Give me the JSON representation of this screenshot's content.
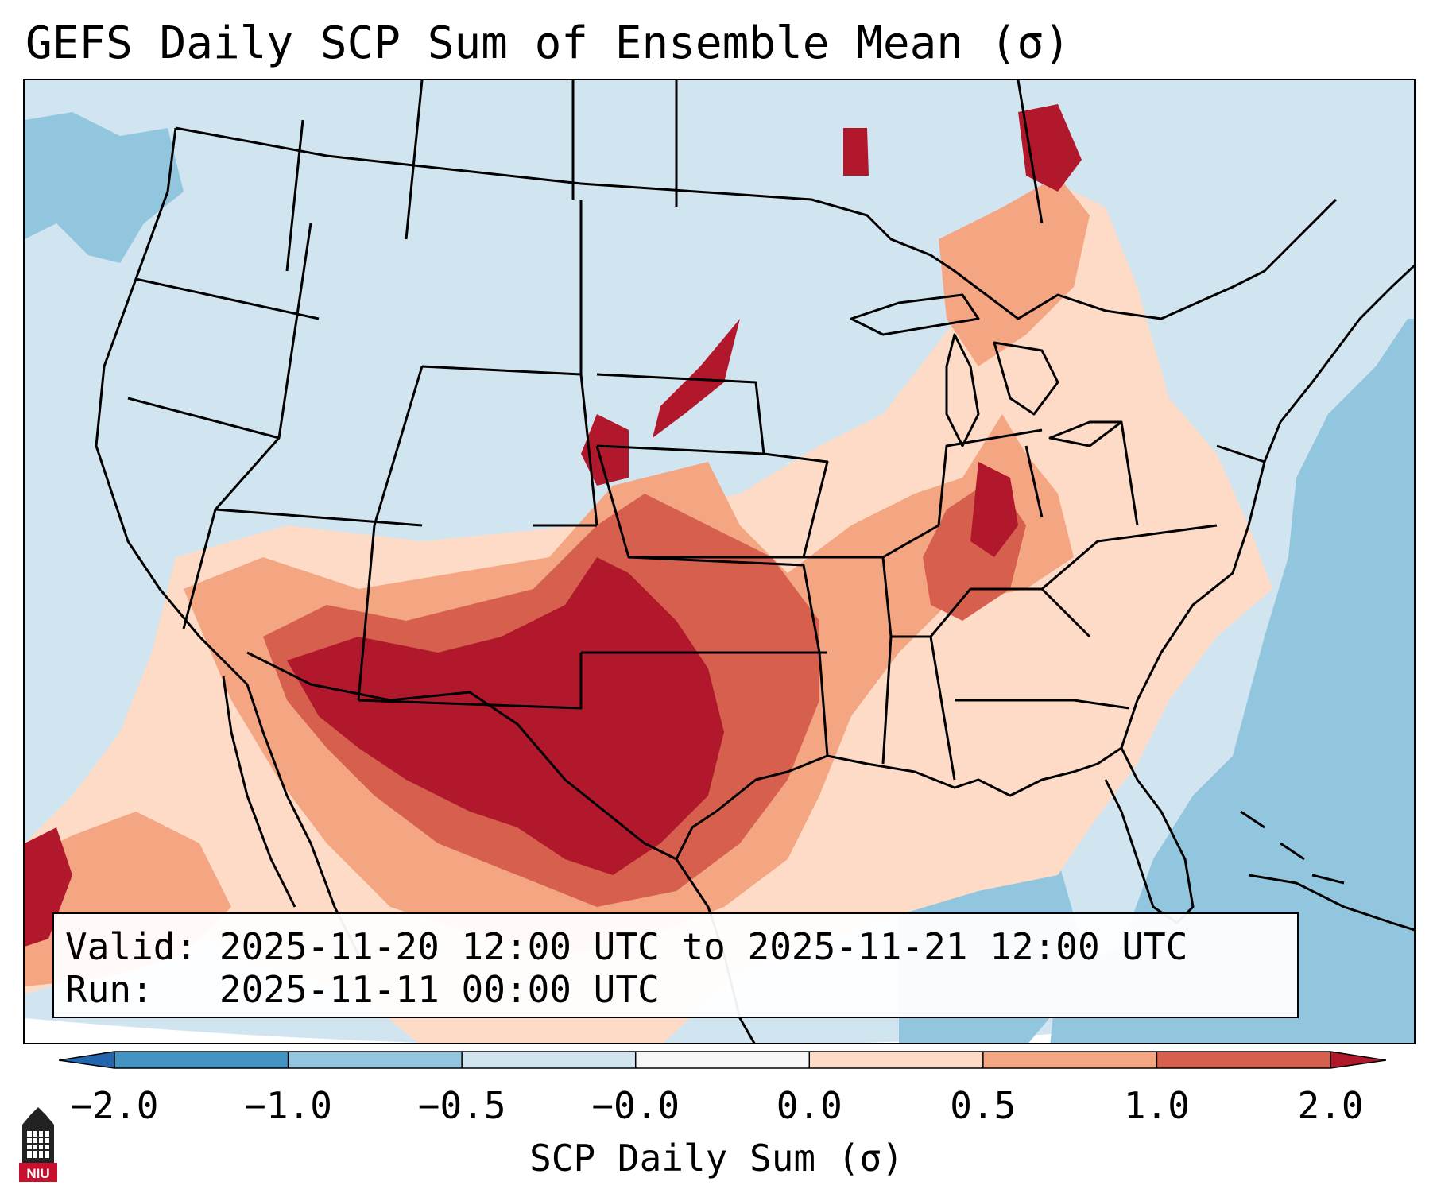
{
  "title": "GEFS Daily SCP Sum of Ensemble Mean (σ)",
  "info": {
    "valid_label": "Valid:",
    "valid_value": "2025-11-20 12:00 UTC to 2025-11-21 12:00 UTC",
    "run_label": "Run:",
    "run_value": "2025-11-11 00:00 UTC"
  },
  "colorbar": {
    "label": "SCP Daily Sum (σ)",
    "ticks": [
      "−2.0",
      "−1.0",
      "−0.5",
      "−0.0",
      "0.0",
      "0.5",
      "1.0",
      "2.0"
    ],
    "colors": {
      "below": "#2166ac",
      "bins": [
        "#4393c3",
        "#92c5de",
        "#d1e5f0",
        "#f7f7f7",
        "#fddbc7",
        "#f4a582",
        "#d6604d"
      ],
      "above": "#b2182b"
    }
  },
  "logo": {
    "text": "NIU",
    "color": "#c8102e"
  },
  "map": {
    "background_color": "#d1e5f0",
    "land_outline_color": "#000000",
    "regions": [
      {
        "name": "texas-oklahoma-core",
        "category": 2.0
      },
      {
        "name": "new-mexico-arizona",
        "category": 2.0
      },
      {
        "name": "kansas-nebraska",
        "category": 1.0
      },
      {
        "name": "ohio-valley",
        "category": 1.0
      },
      {
        "name": "southeast",
        "category": 0.5
      },
      {
        "name": "great-lakes",
        "category": 0.5
      },
      {
        "name": "atlantic-offshore",
        "category": -0.5
      },
      {
        "name": "pacific-offshore",
        "category": -0.5
      }
    ]
  }
}
